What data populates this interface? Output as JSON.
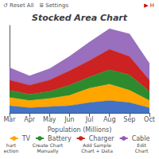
{
  "chart_data": {
    "type": "area",
    "title": "Stocked Area Chart",
    "xlabel": "Population (Millions)",
    "categories": [
      "Mar",
      "Apr",
      "May",
      "Jun",
      "Jul",
      "Aug",
      "Sep",
      "Oct"
    ],
    "series": [
      {
        "color": "#4472C4",
        "values": [
          3.5,
          2.5,
          3,
          3.5,
          5,
          6,
          5,
          2.5
        ]
      },
      {
        "name": "TV",
        "color": "#FFA500",
        "values": [
          4,
          3.5,
          4,
          5,
          7,
          8,
          6,
          3.5
        ]
      },
      {
        "name": "Battery",
        "color": "#2D8B2D",
        "values": [
          3.5,
          3,
          3.5,
          5,
          5.5,
          7,
          7.5,
          4.5
        ]
      },
      {
        "name": "Charger",
        "color": "#CC2222",
        "values": [
          5,
          4.5,
          5.5,
          7,
          8,
          10,
          9,
          5.5
        ]
      },
      {
        "name": "Cable",
        "color": "#8B5BB5",
        "values": [
          6,
          4.5,
          5.5,
          7,
          9,
          10,
          11,
          8
        ]
      }
    ],
    "stacked": true,
    "ylim": [
      0,
      42.64
    ],
    "tick_labels": "x",
    "grid": false,
    "legend": "bottom",
    "annotations": [
      "↺ Reset All   ≣ Settings",
      "▶ H",
      "hart\nection",
      "Create Chart\nManually",
      "Add Sample\nChart + Data",
      "Edit\nChart"
    ]
  }
}
